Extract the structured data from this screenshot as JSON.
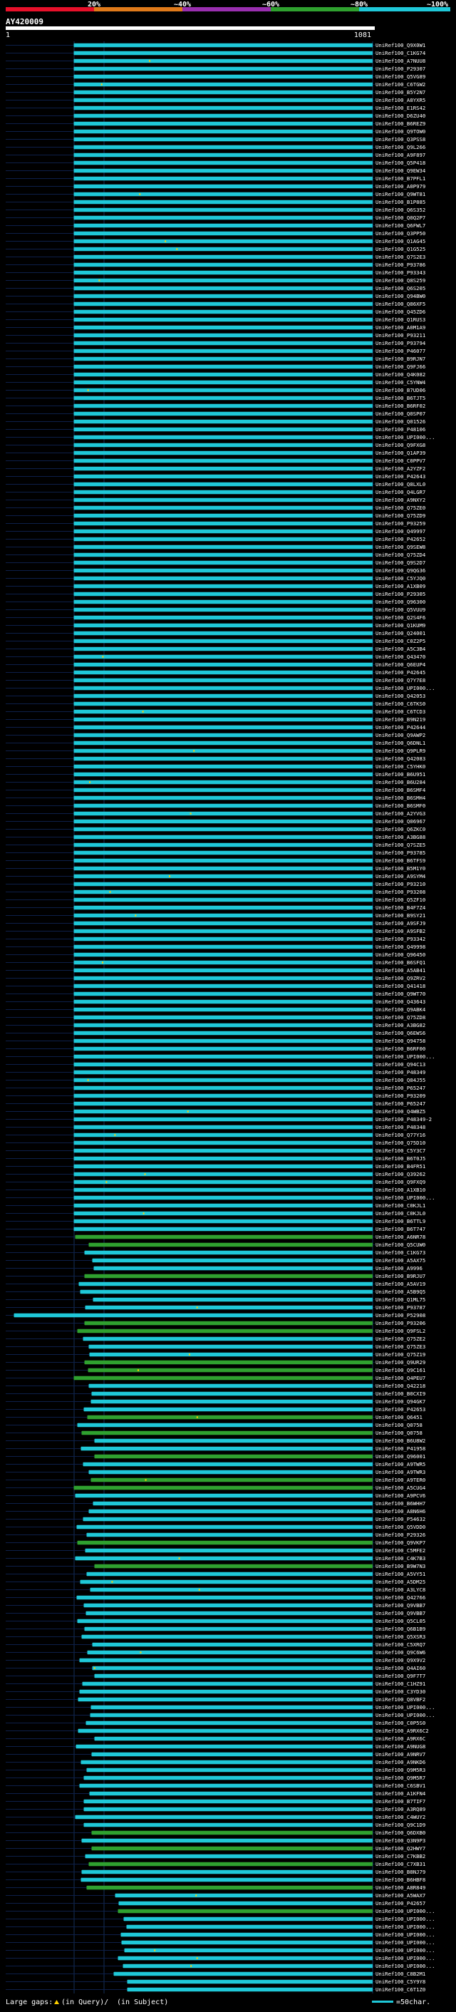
{
  "header": {
    "identity_labels": [
      "20%",
      "~40%",
      "~60%",
      "~80%",
      "~100%"
    ],
    "identity_colors": [
      "#e8102a",
      "#e07a1a",
      "#9a2fb0",
      "#2fa12f",
      "#1fc8d8"
    ],
    "query_id": "AY420009",
    "query_start": "1",
    "query_end": "1081"
  },
  "footer": {
    "large_gaps_label": "Large gaps:",
    "query_gap_text": "(in Query)/",
    "subject_gap_text": "(in Subject)",
    "scale_text": "=50char."
  },
  "chart_data": {
    "type": "alignment-overview",
    "query_length": 1081,
    "visible_subject_ids": [
      "UniRef100_Q9X0W1",
      "UniRef100_C1KG74",
      "UniRef100_A7NUU8",
      "UniRef100_P29307",
      "UniRef100_Q5VG89",
      "UniRef100_C6TGW2",
      "UniRef100_B5Y2N7",
      "UniRef100_A8YXR5",
      "UniRef100_E1RS42",
      "UniRef100_D6ZU40",
      "UniRef100_B6REZ9",
      "UniRef100_Q9TOW0",
      "UniRef100_Q3PSS8",
      "UniRef100_Q9L266",
      "UniRef100_A9F897",
      "UniRef100_Q5P418",
      "UniRef100_Q9EW34",
      "UniRef100_B7PFL1",
      "UniRef100_A0P979",
      "UniRef100_Q9WT81",
      "UniRef100_B1P885",
      "UniRef100_Q6S352",
      "UniRef100_Q0Q2P7",
      "UniRef100_Q6FWL7",
      "UniRef100_Q3PP50",
      "UniRef100_Q1AG45",
      "UniRef100_Q1G525",
      "UniRef100_Q7S2E3",
      "UniRef100_P93786",
      "UniRef100_P93343",
      "UniRef100_Q8S259",
      "UniRef100_Q6S205",
      "UniRef100_Q94BW0",
      "UniRef100_Q86XF5",
      "UniRef100_Q45ZD6",
      "UniRef100_Q1RUS3",
      "UniRef100_A0M1A9",
      "UniRef100_P93211",
      "UniRef100_P93794",
      "UniRef100_P46077",
      "UniRef100_B9RJN7",
      "UniRef100_Q9FJ66",
      "UniRef100_Q4K082",
      "UniRef100_C5YNW4",
      "UniRef100_B7UD06",
      "UniRef100_B6TJT5",
      "UniRef100_B6RF02",
      "UniRef100_Q0SP07",
      "UniRef100_Q01526",
      "UniRef100_P48106",
      "UniRef100_UPI000...",
      "UniRef100_Q9FXG8",
      "UniRef100_Q1AP39",
      "UniRef100_C0PPV7",
      "UniRef100_A2YZF2",
      "UniRef100_P42643",
      "UniRef100_Q8LXL0",
      "UniRef100_Q4LGR7",
      "UniRef100_A9NXY2",
      "UniRef100_Q75ZE0",
      "UniRef100_Q75ZD9",
      "UniRef100_P93259",
      "UniRef100_Q49997",
      "UniRef100_P42652",
      "UniRef100_Q9SEW8",
      "UniRef100_Q75ZD4",
      "UniRef100_Q9S2D7",
      "UniRef100_Q9QG36",
      "UniRef100_C5YJQ0",
      "UniRef100_A1XB09",
      "UniRef100_P29305",
      "UniRef100_Q96300",
      "UniRef100_Q5VUU9",
      "UniRef100_Q2S4F6",
      "UniRef100_Q1KUM9",
      "UniRef100_Q24001",
      "UniRef100_C0Z2P5",
      "UniRef100_A5C3B4",
      "UniRef100_Q43470",
      "UniRef100_Q6EUP4",
      "UniRef100_P42645",
      "UniRef100_Q7Y7E8",
      "UniRef100_UPI000...",
      "UniRef100_Q42053",
      "UniRef100_C6TKS0",
      "UniRef100_C6TCD3",
      "UniRef100_B9N219",
      "UniRef100_P42644",
      "UniRef100_Q9AWP2",
      "UniRef100_Q6DNL1",
      "UniRef100_Q9PLR9",
      "UniRef100_Q42083",
      "UniRef100_C5YHK0",
      "UniRef100_B6U951",
      "UniRef100_B6U284",
      "UniRef100_B6SMF4",
      "UniRef100_B6SMH4",
      "UniRef100_B6SMF0",
      "UniRef100_A2YVG3",
      "UniRef100_Q06967",
      "UniRef100_Q6ZKC0",
      "UniRef100_A3BG88",
      "UniRef100_Q7SZE5",
      "UniRef100_P93785",
      "UniRef100_B6TFS9",
      "UniRef100_B5M1Y0",
      "UniRef100_A9SYM4",
      "UniRef100_P93210",
      "UniRef100_P93208",
      "UniRef100_Q5ZF10",
      "UniRef100_B4F7Z4",
      "UniRef100_B9SY21",
      "UniRef100_A9SFJ9",
      "UniRef100_A9SFB2",
      "UniRef100_P93342",
      "UniRef100_Q49998",
      "UniRef100_Q96450",
      "UniRef100_B6SFQ1",
      "UniRef100_A5AB41",
      "UniRef100_Q9ZRV2",
      "UniRef100_Q41418",
      "UniRef100_Q9WT70",
      "UniRef100_Q43643",
      "UniRef100_Q9ABK4",
      "UniRef100_Q75ZD8",
      "UniRef100_A3BG82",
      "UniRef100_Q6EWS6",
      "UniRef100_Q94758",
      "UniRef100_B6RF00",
      "UniRef100_UPI000...",
      "UniRef100_Q94C13",
      "UniRef100_P48349",
      "UniRef100_Q84J55",
      "UniRef100_P65247",
      "UniRef100_P93209",
      "UniRef100_P65247",
      "UniRef100_Q4WBZ5",
      "UniRef100_P48349-2",
      "UniRef100_P48348",
      "UniRef100_Q77Y16",
      "UniRef100_Q75D10",
      "UniRef100_C5Y3C7",
      "UniRef100_B6T0J5",
      "UniRef100_B4FR51",
      "UniRef100_Q39262",
      "UniRef100_Q9FXQ9",
      "UniRef100_A1XB10",
      "UniRef100_UPI000...",
      "UniRef100_C0KJL1",
      "UniRef100_C0KJL0",
      "UniRef100_B6TTL9",
      "UniRef100_B6T747",
      "UniRef100_A6NR78",
      "UniRef100_Q5CUW0",
      "UniRef100_C1KG73",
      "UniRef100_A5AX75",
      "UniRef100_A9996",
      "UniRef100_B9RJU7",
      "UniRef100_A5AV19",
      "UniRef100_A5B9Q5",
      "UniRef100_Q1ML75",
      "UniRef100_P93787",
      "UniRef100_P52908",
      "UniRef100_P93206",
      "UniRef100_Q9FSL2",
      "UniRef100_Q75ZE2",
      "UniRef100_Q75ZE3",
      "UniRef100_Q75Z19",
      "UniRef100_Q9UR29",
      "UniRef100_Q9C161",
      "UniRef100_Q4PEU7",
      "UniRef100_Q42218",
      "UniRef100_B0CXI9",
      "UniRef100_Q94GK7",
      "UniRef100_P42653",
      "UniRef100_Q6451",
      "UniRef100_Q0758",
      "UniRef100_Q0758",
      "UniRef100_B6U8W2",
      "UniRef100_P41958",
      "UniRef100_Q96001",
      "UniRef100_A9TWR5",
      "UniRef100_A9TWR3",
      "UniRef100_A9TER0",
      "UniRef100_A5CUG4",
      "UniRef100_A9PCV6",
      "UniRef100_B6WHH7",
      "UniRef100_A8N6H6",
      "UniRef100_P54632",
      "UniRef100_Q5VDD0",
      "UniRef100_P29326",
      "UniRef100_Q9VKP7",
      "UniRef100_C5MFE2",
      "UniRef100_C4K7B3",
      "UniRef100_B9W7N3",
      "UniRef100_A5VY51",
      "UniRef100_A5DM25",
      "UniRef100_A3LYC8",
      "UniRef100_Q42766",
      "UniRef100_Q9VBB7",
      "UniRef100_Q9VBB7",
      "UniRef100_Q5CL05",
      "UniRef100_Q6B1B9",
      "UniRef100_Q5XSR3",
      "UniRef100_C5XRQ7",
      "UniRef100_Q9C6W6",
      "UniRef100_Q9X9V2",
      "UniRef100_Q4AI60",
      "UniRef100_Q9F7T7",
      "UniRef100_C1HZ91",
      "UniRef100_C3YD30",
      "UniRef100_Q8VBF2",
      "UniRef100_UPI000...",
      "UniRef100_UPI000...",
      "UniRef100_C0P5S0",
      "UniRef100_A9RX6C2",
      "UniRef100_A9RX6C",
      "UniRef100_A9NUG8",
      "UniRef100_A9NRV7",
      "UniRef100_A9NKD6",
      "UniRef100_Q9M5R3",
      "UniRef100_Q9M5R7",
      "UniRef100_C6SBV1",
      "UniRef100_A1KFN4",
      "UniRef100_B7TIF7",
      "UniRef100_A3RQ89",
      "UniRef100_C4WUY2",
      "UniRef100_Q9C1D9",
      "UniRef100_Q6DXB0",
      "UniRef100_Q3N9P3",
      "UniRef100_Q2HWY7",
      "UniRef100_C7KBB2",
      "UniRef100_C7XB31",
      "UniRef100_B8NJ79",
      "UniRef100_B6HBF8",
      "UniRef100_A8R849",
      "UniRef100_A5WAX7",
      "UniRef100_P42657",
      "UniRef100_UPI000...",
      "UniRef100_UPI000...",
      "UniRef100_UPI000...",
      "UniRef100_UPI000...",
      "UniRef100_UPI000...",
      "UniRef100_UPI000...",
      "UniRef100_UPI000...",
      "UniRef100_UPI000...",
      "UniRef100_C8B2M1",
      "UniRef100_C5Y9Y8",
      "UniRef100_C6T1Z0"
    ]
  }
}
